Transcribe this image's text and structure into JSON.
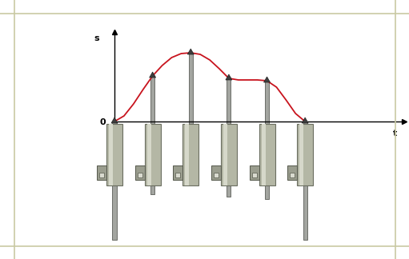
{
  "chart_data": {
    "type": "line",
    "x_label": "t",
    "y_label": "s",
    "x": [
      0,
      0.25,
      0.5,
      0.75,
      1.0,
      1.25,
      1.5,
      1.75,
      2.0,
      2.25,
      2.5,
      2.75,
      3.0,
      3.25,
      3.5,
      3.75,
      4.0,
      4.25,
      4.5,
      4.75,
      5.0
    ],
    "values": [
      0,
      0.7,
      2.2,
      4.0,
      5.7,
      7.0,
      8.0,
      8.5,
      8.6,
      8.4,
      7.7,
      6.6,
      5.4,
      5.2,
      5.2,
      5.2,
      5.1,
      4.3,
      2.7,
      1.0,
      0
    ],
    "color": "#c8141e",
    "xlim": [
      0,
      7.6
    ],
    "ylim": [
      0,
      11.2
    ],
    "xticks": [],
    "yticks": [
      0
    ],
    "tick_labels": "y",
    "grid": false
  }
}
